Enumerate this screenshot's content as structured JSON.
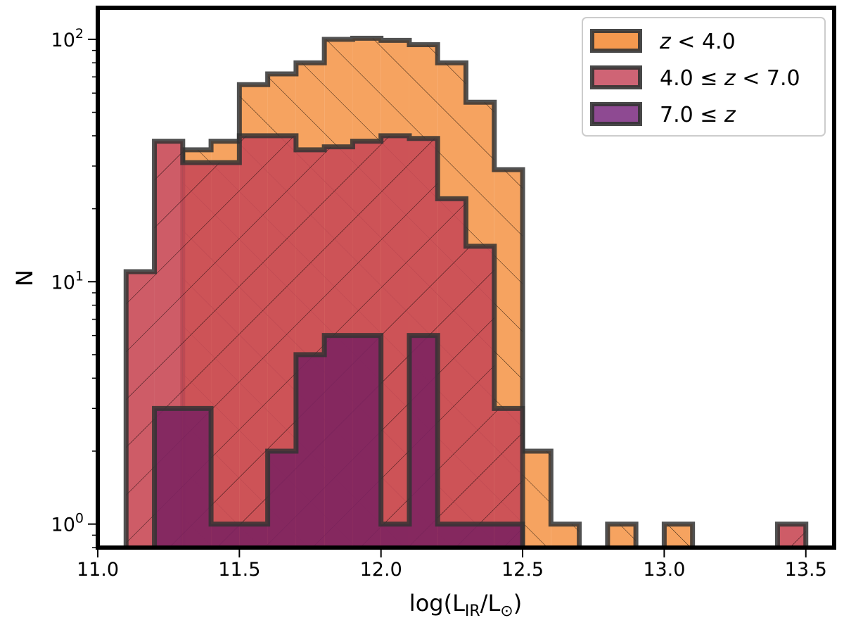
{
  "chart_data": {
    "type": "histogram",
    "xlabel": "log(L_IR/L_⊙)",
    "ylabel": "N",
    "xlim": [
      11.0,
      13.6
    ],
    "ylim": [
      0.8,
      135
    ],
    "yscale": "log",
    "grid": false,
    "legend_position": "top-right",
    "x_ticks": [
      11.0,
      11.5,
      12.0,
      12.5,
      13.0,
      13.5
    ],
    "x_tick_labels": [
      "11.0",
      "11.5",
      "12.0",
      "12.5",
      "13.0",
      "13.5"
    ],
    "y_ticks": [
      1,
      10,
      100
    ],
    "y_tick_labels": [
      {
        "base": "10",
        "exp": "0"
      },
      {
        "base": "10",
        "exp": "1"
      },
      {
        "base": "10",
        "exp": "2"
      }
    ],
    "series": [
      {
        "name": "z < 4.0",
        "color": "#f5994f",
        "hatch": "forward",
        "bins": [
          [
            11.3,
            11.4,
            35
          ],
          [
            11.4,
            11.5,
            38
          ],
          [
            11.5,
            11.6,
            65
          ],
          [
            11.6,
            11.7,
            72
          ],
          [
            11.7,
            11.8,
            80
          ],
          [
            11.8,
            11.9,
            100
          ],
          [
            11.9,
            12.0,
            101
          ],
          [
            12.0,
            12.1,
            99
          ],
          [
            12.1,
            12.2,
            95
          ],
          [
            12.2,
            12.3,
            80
          ],
          [
            12.3,
            12.4,
            55
          ],
          [
            12.4,
            12.5,
            29
          ],
          [
            12.5,
            12.6,
            2
          ],
          [
            12.6,
            12.7,
            1
          ],
          [
            12.8,
            12.9,
            1
          ],
          [
            13.0,
            13.1,
            1
          ]
        ]
      },
      {
        "name": "4.0 ≤ z < 7.0",
        "color": "#c94a56",
        "hatch": "back",
        "bins": [
          [
            11.1,
            11.2,
            11
          ],
          [
            11.2,
            11.3,
            38
          ],
          [
            11.3,
            11.4,
            31
          ],
          [
            11.4,
            11.5,
            31
          ],
          [
            11.5,
            11.6,
            40
          ],
          [
            11.6,
            11.7,
            40
          ],
          [
            11.7,
            11.8,
            35
          ],
          [
            11.8,
            11.9,
            36
          ],
          [
            11.9,
            12.0,
            38
          ],
          [
            12.0,
            12.1,
            40
          ],
          [
            12.1,
            12.2,
            39
          ],
          [
            12.2,
            12.3,
            22
          ],
          [
            12.3,
            12.4,
            14
          ],
          [
            12.4,
            12.5,
            3
          ],
          [
            13.4,
            13.5,
            1
          ]
        ]
      },
      {
        "name": "7.0 ≤ z",
        "color": "#7d2461",
        "hatch": "none",
        "bins": [
          [
            11.2,
            11.3,
            3
          ],
          [
            11.3,
            11.4,
            3
          ],
          [
            11.4,
            11.5,
            1
          ],
          [
            11.5,
            11.6,
            1
          ],
          [
            11.6,
            11.7,
            2
          ],
          [
            11.7,
            11.8,
            5
          ],
          [
            11.8,
            11.9,
            6
          ],
          [
            11.9,
            12.0,
            6
          ],
          [
            12.0,
            12.1,
            1
          ],
          [
            12.1,
            12.2,
            6
          ],
          [
            12.2,
            12.3,
            1
          ],
          [
            12.3,
            12.4,
            1
          ],
          [
            12.4,
            12.5,
            1
          ]
        ]
      }
    ],
    "legend": [
      {
        "prefix": "",
        "var": "z",
        "suffix": " < 4.0",
        "color": "#f5994f"
      },
      {
        "prefix": "4.0 ≤ ",
        "var": "z",
        "suffix": " < 7.0",
        "color": "#cf6475"
      },
      {
        "prefix": "7.0 ≤ ",
        "var": "z",
        "suffix": "",
        "color": "#8e4a92"
      }
    ]
  }
}
